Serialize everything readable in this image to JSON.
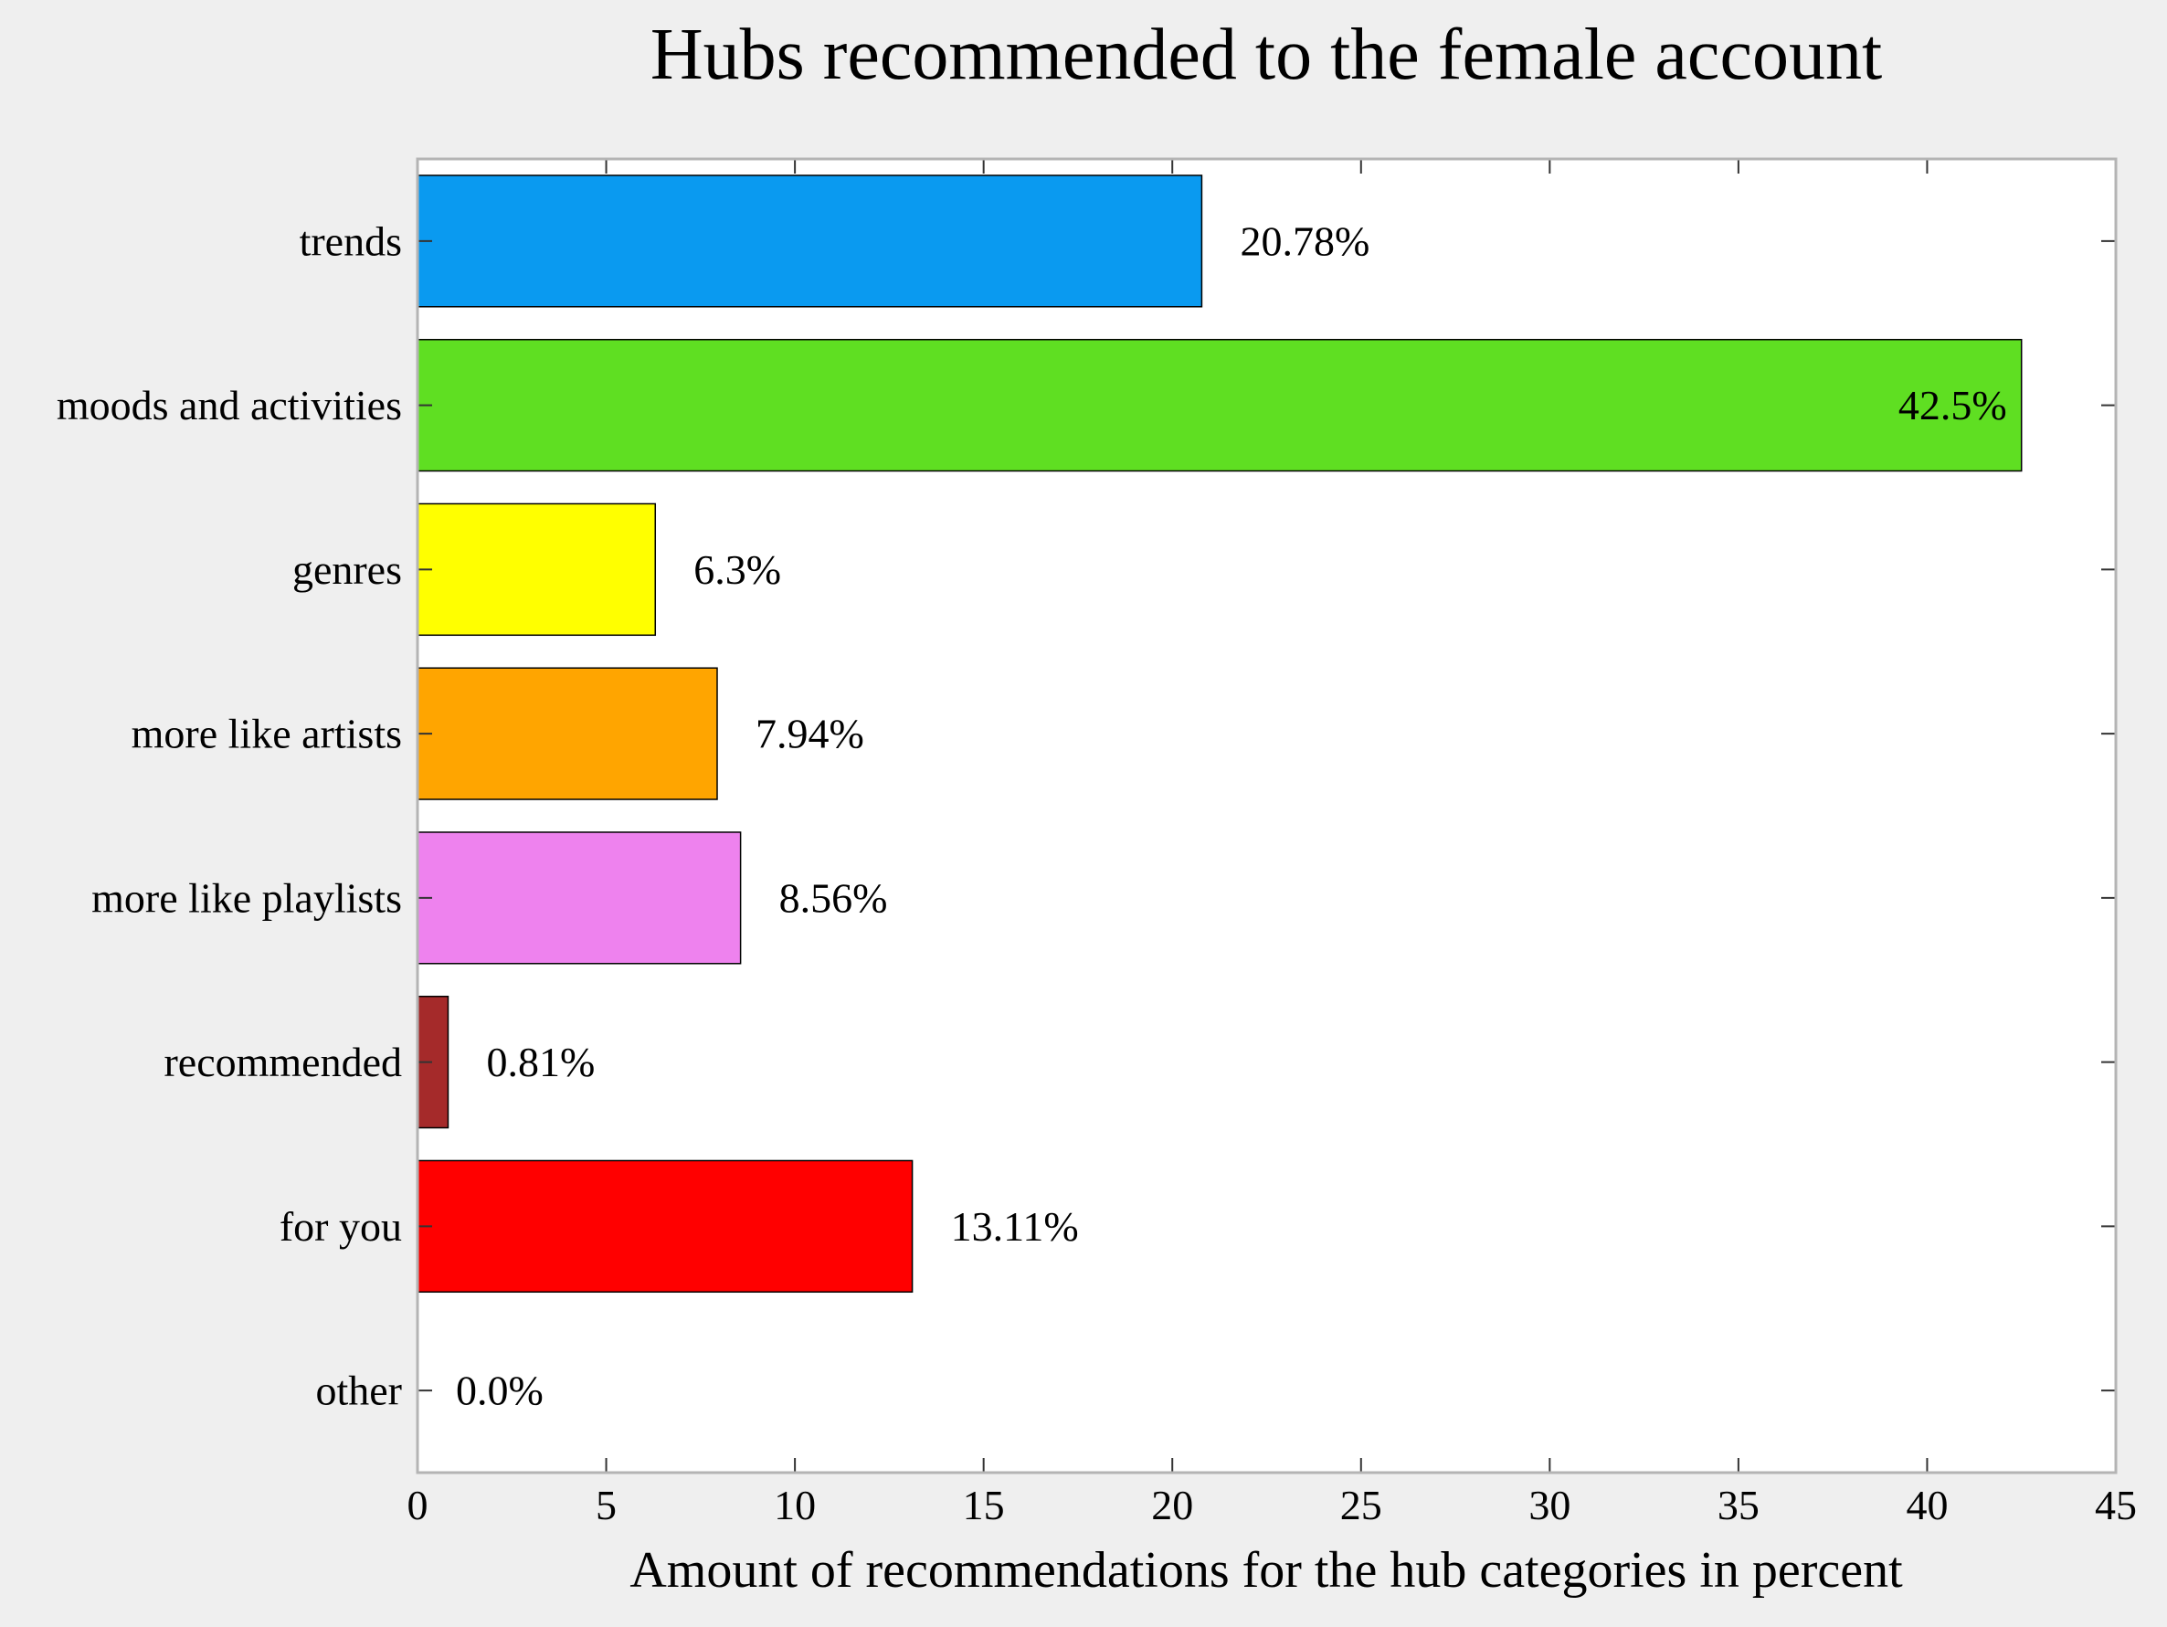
{
  "chart_data": {
    "type": "bar",
    "orientation": "horizontal",
    "title": "Hubs recommended to the female account",
    "xlabel": "Amount of recommendations for the hub categories in percent",
    "ylabel": "",
    "xlim": [
      0,
      45
    ],
    "xticks": [
      0,
      5,
      10,
      15,
      20,
      25,
      30,
      35,
      40,
      45
    ],
    "grid": false,
    "categories": [
      "trends",
      "moods and activities",
      "genres",
      "more like artists",
      "more like playlists",
      "recommended",
      "for you",
      "other"
    ],
    "values": [
      20.78,
      42.5,
      6.3,
      7.94,
      8.56,
      0.81,
      13.11,
      0.0
    ],
    "value_labels": [
      "20.78%",
      "42.5%",
      "6.3%",
      "7.94%",
      "8.56%",
      "0.81%",
      "13.11%",
      "0.0%"
    ],
    "colors": [
      "#0a9af0",
      "#5fdf22",
      "#ffff00",
      "#ffa500",
      "#ee82ee",
      "#a52a2a",
      "#ff0000",
      "#808080"
    ]
  }
}
